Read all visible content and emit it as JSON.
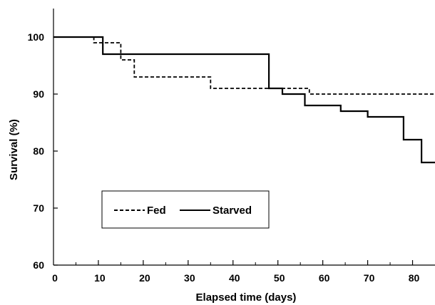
{
  "chart_data": {
    "type": "line",
    "title": "",
    "xlabel": "Elapsed time (days)",
    "ylabel": "Survival (%)",
    "xlim": [
      0,
      85
    ],
    "ylim": [
      60,
      105
    ],
    "x_ticks": [
      0,
      10,
      20,
      30,
      40,
      50,
      60,
      70,
      80
    ],
    "y_ticks": [
      60,
      70,
      80,
      90,
      100
    ],
    "grid": false,
    "legend": {
      "placement": "lower-left",
      "entries": [
        "Fed",
        "Starved"
      ]
    },
    "series": [
      {
        "name": "Fed",
        "style": "dashed",
        "color": "#000000",
        "step": true,
        "points": [
          [
            0,
            100
          ],
          [
            9,
            100
          ],
          [
            9,
            99
          ],
          [
            15,
            99
          ],
          [
            15,
            96
          ],
          [
            18,
            96
          ],
          [
            18,
            93
          ],
          [
            35,
            93
          ],
          [
            35,
            91
          ],
          [
            57,
            91
          ],
          [
            57,
            90
          ],
          [
            85,
            90
          ]
        ]
      },
      {
        "name": "Starved",
        "style": "solid",
        "color": "#000000",
        "step": true,
        "points": [
          [
            0,
            100
          ],
          [
            11,
            100
          ],
          [
            11,
            97
          ],
          [
            48,
            97
          ],
          [
            48,
            91
          ],
          [
            51,
            91
          ],
          [
            51,
            90
          ],
          [
            56,
            90
          ],
          [
            56,
            88
          ],
          [
            64,
            88
          ],
          [
            64,
            87
          ],
          [
            70,
            87
          ],
          [
            70,
            86
          ],
          [
            78,
            86
          ],
          [
            78,
            82
          ],
          [
            82,
            82
          ],
          [
            82,
            78
          ],
          [
            85,
            78
          ]
        ]
      }
    ]
  }
}
